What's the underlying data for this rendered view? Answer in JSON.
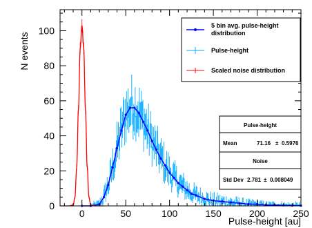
{
  "chart_data": {
    "type": "line",
    "xlabel": "Pulse-height [au]",
    "ylabel": "N events",
    "xlim": [
      -25,
      250
    ],
    "ylim": [
      0,
      112
    ],
    "xticks": [
      0,
      50,
      100,
      150,
      200,
      250
    ],
    "yticks": [
      0,
      20,
      40,
      60,
      80,
      100
    ],
    "grid": false,
    "legend_position": "top-right",
    "series": [
      {
        "name": "5 bin avg. pulse-height distribution",
        "color": "#0000ff",
        "style": "line",
        "x": [
          0,
          10,
          20,
          25,
          30,
          35,
          40,
          45,
          50,
          55,
          60,
          65,
          70,
          75,
          80,
          85,
          90,
          95,
          100,
          105,
          110,
          115,
          120,
          125,
          130,
          140,
          150,
          160,
          170,
          180,
          190,
          200,
          210,
          220,
          230,
          240,
          250
        ],
        "y": [
          0,
          0,
          1,
          5,
          12,
          22,
          33,
          43,
          52,
          56,
          56,
          53,
          48,
          43,
          37,
          32,
          27,
          23,
          19,
          16,
          13,
          11,
          9,
          7,
          6,
          4,
          3,
          2.5,
          2,
          1.5,
          1,
          1,
          0.5,
          0.5,
          0.3,
          0.2,
          0.1
        ]
      },
      {
        "name": "Pulse-height",
        "color": "#00aaff",
        "style": "error-bars",
        "x_range": [
          0,
          250
        ],
        "note_envelope_y": [
          0,
          0,
          1,
          5,
          12,
          22,
          33,
          43,
          52,
          56,
          56,
          53,
          48,
          43,
          37,
          32,
          27,
          23,
          19,
          16,
          13,
          11,
          9,
          7,
          6,
          4,
          3,
          2.5,
          2,
          1.5,
          1,
          1,
          0.5,
          0.5,
          0.3,
          0.2,
          0.1
        ]
      },
      {
        "name": "Scaled noise distribution",
        "color": "#ff0000",
        "style": "line",
        "x": [
          -25,
          -15,
          -10,
          -8,
          -6,
          -4,
          -2,
          0,
          2,
          4,
          6,
          8,
          10,
          15,
          25
        ],
        "y": [
          0,
          0,
          0.5,
          5,
          22,
          55,
          90,
          103,
          90,
          55,
          22,
          5,
          0.5,
          0,
          0
        ]
      }
    ],
    "stats": {
      "title1": "Pulse-height",
      "mean_label": "Mean",
      "mean_value": "71.16",
      "mean_sep": "±",
      "mean_err": "0.5976",
      "title2": "Noise",
      "std_label": "Std Dev",
      "std_value": "2.781",
      "std_sep": "±",
      "std_err": "0.008049"
    }
  },
  "colors": {
    "axis": "#000000",
    "avg": "#0000ff",
    "data": "#00aaff",
    "noise": "#ff0000"
  }
}
